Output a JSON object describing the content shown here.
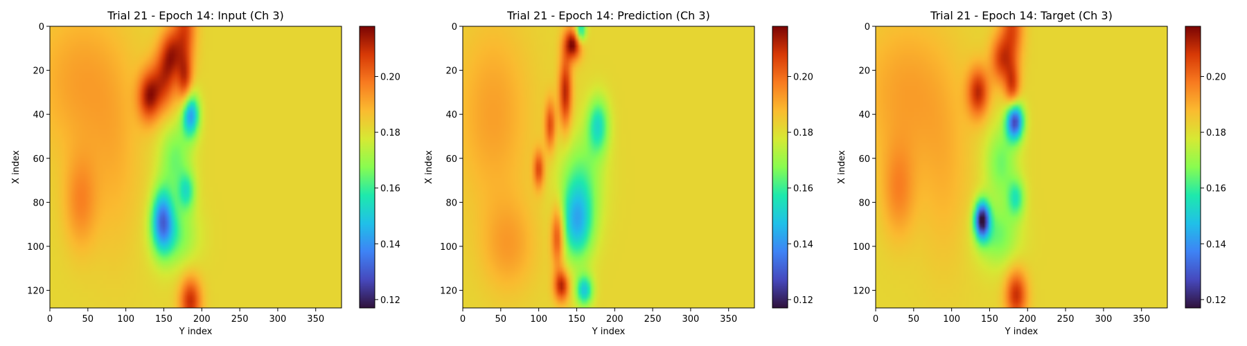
{
  "chart_data": [
    {
      "type": "heatmap",
      "title": "Trial 21 - Epoch 14: Input (Ch 3)",
      "xlabel": "Y index",
      "ylabel": "X index",
      "xlim": [
        0,
        384
      ],
      "ylim": [
        128,
        0
      ],
      "xticks": [
        0,
        50,
        100,
        150,
        200,
        250,
        300,
        350
      ],
      "yticks": [
        0,
        20,
        40,
        60,
        80,
        100,
        120
      ],
      "colormap": "turbo",
      "colorbar": {
        "min": 0.117,
        "max": 0.218,
        "ticks": [
          0.12,
          0.14,
          0.16,
          0.18,
          0.2
        ],
        "tick_labels": [
          "0.12",
          "0.14",
          "0.16",
          "0.18",
          "0.20"
        ]
      },
      "field": {
        "background": 0.182,
        "features": [
          {
            "x": 178,
            "y": 0,
            "value": 0.205,
            "sx": 10,
            "sy": 12
          },
          {
            "x": 160,
            "y": 12,
            "value": 0.205,
            "sx": 10,
            "sy": 8
          },
          {
            "x": 130,
            "y": 32,
            "value": 0.21,
            "sx": 10,
            "sy": 8
          },
          {
            "x": 150,
            "y": 25,
            "value": 0.205,
            "sx": 12,
            "sy": 10
          },
          {
            "x": 178,
            "y": 25,
            "value": 0.206,
            "sx": 7,
            "sy": 9
          },
          {
            "x": 185,
            "y": 40,
            "value": 0.14,
            "sx": 8,
            "sy": 7
          },
          {
            "x": 165,
            "y": 60,
            "value": 0.165,
            "sx": 15,
            "sy": 12
          },
          {
            "x": 180,
            "y": 75,
            "value": 0.16,
            "sx": 8,
            "sy": 6
          },
          {
            "x": 148,
            "y": 88,
            "value": 0.14,
            "sx": 10,
            "sy": 10
          },
          {
            "x": 165,
            "y": 95,
            "value": 0.165,
            "sx": 20,
            "sy": 10
          },
          {
            "x": 185,
            "y": 125,
            "value": 0.21,
            "sx": 10,
            "sy": 8
          },
          {
            "x": 40,
            "y": 25,
            "value": 0.192,
            "sx": 45,
            "sy": 25
          },
          {
            "x": 40,
            "y": 80,
            "value": 0.195,
            "sx": 15,
            "sy": 15
          },
          {
            "x": 85,
            "y": 65,
            "value": 0.188,
            "sx": 25,
            "sy": 30
          }
        ]
      }
    },
    {
      "type": "heatmap",
      "title": "Trial 21 - Epoch 14: Prediction (Ch 3)",
      "xlabel": "Y index",
      "ylabel": "X index",
      "xlim": [
        0,
        384
      ],
      "ylim": [
        128,
        0
      ],
      "xticks": [
        0,
        50,
        100,
        150,
        200,
        250,
        300,
        350
      ],
      "yticks": [
        0,
        20,
        40,
        60,
        80,
        100,
        120
      ],
      "colormap": "turbo",
      "colorbar": {
        "min": 0.117,
        "max": 0.218,
        "ticks": [
          0.12,
          0.14,
          0.16,
          0.18,
          0.2
        ],
        "tick_labels": [
          "0.12",
          "0.14",
          "0.16",
          "0.18",
          "0.20"
        ]
      },
      "field": {
        "background": 0.182,
        "features": [
          {
            "x": 145,
            "y": 8,
            "value": 0.218,
            "sx": 8,
            "sy": 5
          },
          {
            "x": 155,
            "y": 2,
            "value": 0.15,
            "sx": 5,
            "sy": 4
          },
          {
            "x": 135,
            "y": 30,
            "value": 0.212,
            "sx": 6,
            "sy": 12
          },
          {
            "x": 115,
            "y": 45,
            "value": 0.205,
            "sx": 5,
            "sy": 8
          },
          {
            "x": 178,
            "y": 45,
            "value": 0.155,
            "sx": 10,
            "sy": 9
          },
          {
            "x": 100,
            "y": 65,
            "value": 0.205,
            "sx": 5,
            "sy": 6
          },
          {
            "x": 155,
            "y": 70,
            "value": 0.165,
            "sx": 20,
            "sy": 15
          },
          {
            "x": 150,
            "y": 90,
            "value": 0.15,
            "sx": 15,
            "sy": 12
          },
          {
            "x": 125,
            "y": 95,
            "value": 0.21,
            "sx": 6,
            "sy": 10
          },
          {
            "x": 130,
            "y": 118,
            "value": 0.212,
            "sx": 7,
            "sy": 5
          },
          {
            "x": 160,
            "y": 120,
            "value": 0.15,
            "sx": 8,
            "sy": 5
          },
          {
            "x": 40,
            "y": 40,
            "value": 0.192,
            "sx": 35,
            "sy": 30
          },
          {
            "x": 60,
            "y": 100,
            "value": 0.192,
            "sx": 25,
            "sy": 15
          }
        ]
      }
    },
    {
      "type": "heatmap",
      "title": "Trial 21 - Epoch 14: Target (Ch 3)",
      "xlabel": "Y index",
      "ylabel": "X index",
      "xlim": [
        0,
        384
      ],
      "ylim": [
        128,
        0
      ],
      "xticks": [
        0,
        50,
        100,
        150,
        200,
        250,
        300,
        350
      ],
      "yticks": [
        0,
        20,
        40,
        60,
        80,
        100,
        120
      ],
      "colormap": "turbo",
      "colorbar": {
        "min": 0.117,
        "max": 0.218,
        "ticks": [
          0.12,
          0.14,
          0.16,
          0.18,
          0.2
        ],
        "tick_labels": [
          "0.12",
          "0.14",
          "0.16",
          "0.18",
          "0.20"
        ]
      },
      "field": {
        "background": 0.182,
        "features": [
          {
            "x": 180,
            "y": 0,
            "value": 0.205,
            "sx": 10,
            "sy": 12
          },
          {
            "x": 165,
            "y": 15,
            "value": 0.205,
            "sx": 10,
            "sy": 8
          },
          {
            "x": 135,
            "y": 30,
            "value": 0.21,
            "sx": 10,
            "sy": 8
          },
          {
            "x": 180,
            "y": 28,
            "value": 0.206,
            "sx": 7,
            "sy": 8
          },
          {
            "x": 183,
            "y": 43,
            "value": 0.125,
            "sx": 8,
            "sy": 6
          },
          {
            "x": 165,
            "y": 62,
            "value": 0.165,
            "sx": 15,
            "sy": 12
          },
          {
            "x": 185,
            "y": 78,
            "value": 0.16,
            "sx": 8,
            "sy": 6
          },
          {
            "x": 140,
            "y": 88,
            "value": 0.12,
            "sx": 7,
            "sy": 6
          },
          {
            "x": 160,
            "y": 95,
            "value": 0.165,
            "sx": 20,
            "sy": 10
          },
          {
            "x": 185,
            "y": 122,
            "value": 0.21,
            "sx": 10,
            "sy": 8
          },
          {
            "x": 40,
            "y": 30,
            "value": 0.192,
            "sx": 45,
            "sy": 25
          },
          {
            "x": 30,
            "y": 75,
            "value": 0.195,
            "sx": 15,
            "sy": 15
          },
          {
            "x": 90,
            "y": 70,
            "value": 0.188,
            "sx": 25,
            "sy": 30
          }
        ]
      }
    }
  ]
}
